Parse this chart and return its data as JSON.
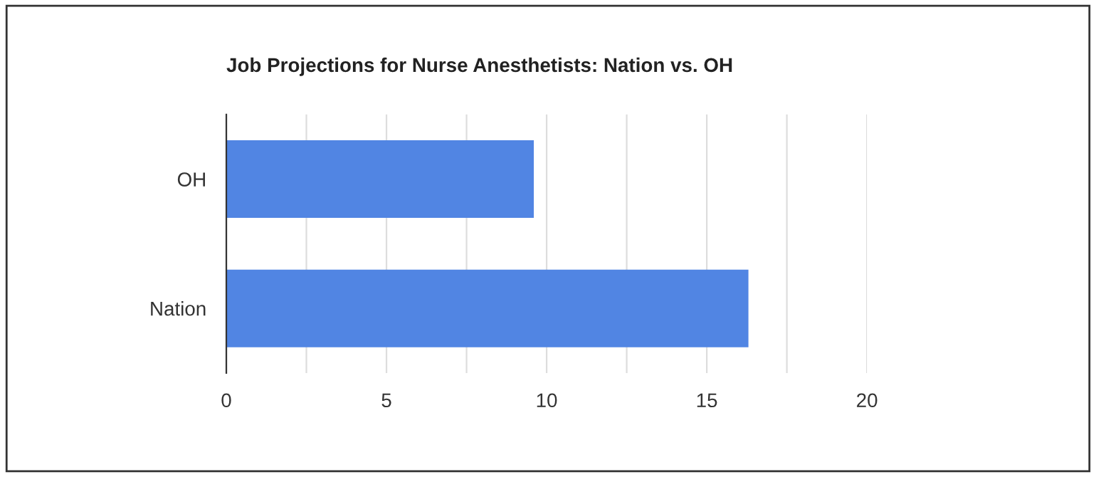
{
  "chart_data": {
    "type": "bar",
    "orientation": "horizontal",
    "title": "Job Projections for Nurse Anesthetists: Nation vs. OH",
    "categories": [
      "OH",
      "Nation"
    ],
    "series": [
      {
        "color": "#5185e3",
        "values": [
          9.6,
          16.3
        ]
      }
    ],
    "xlim": [
      0,
      20
    ],
    "xticks": [
      0,
      {
        "value": 2.5,
        "label": null
      },
      5,
      {
        "value": 7.5,
        "label": null
      },
      10,
      {
        "value": 12.5,
        "label": null
      },
      15,
      {
        "value": 17.5,
        "label": null
      },
      20
    ],
    "grid": "x",
    "legend": false
  }
}
